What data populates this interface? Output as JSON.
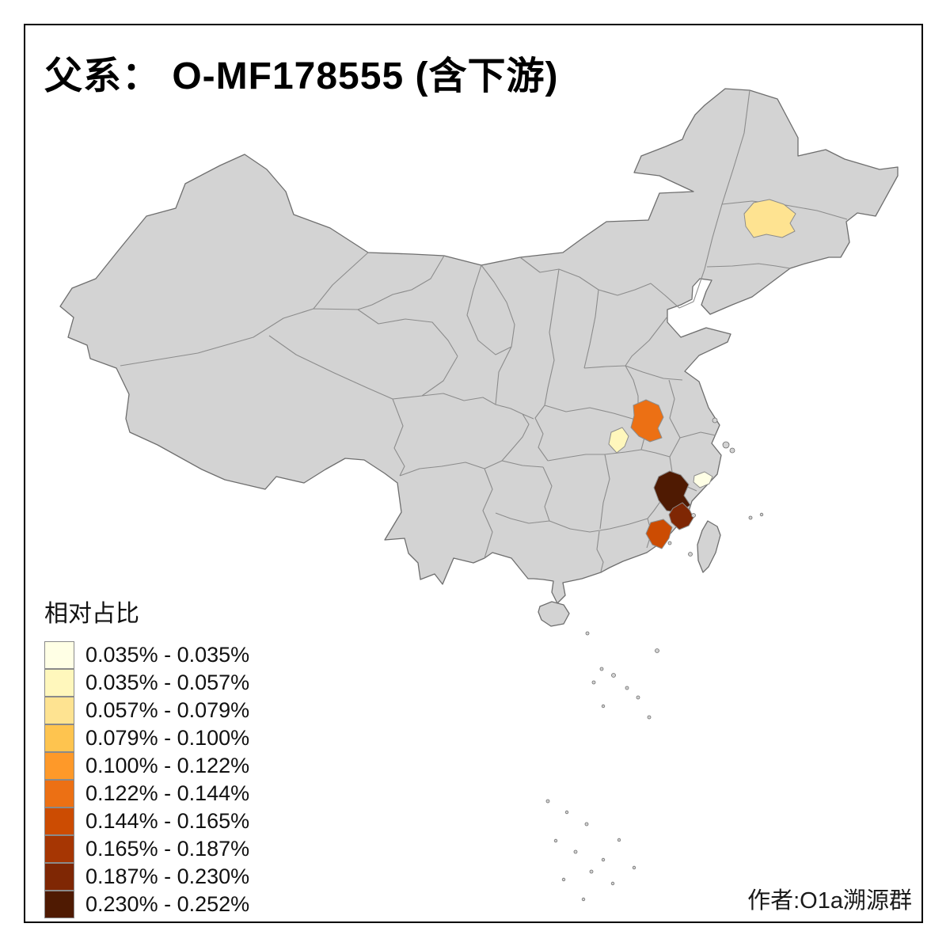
{
  "title": "父系： O-MF178555 (含下游)",
  "legend": {
    "title": "相对占比",
    "items": [
      {
        "color": "#FFFFE5",
        "label": "0.035% - 0.035%"
      },
      {
        "color": "#FFF7BC",
        "label": "0.035% - 0.057%"
      },
      {
        "color": "#FEE391",
        "label": "0.057% - 0.079%"
      },
      {
        "color": "#FEC44F",
        "label": "0.079% - 0.100%"
      },
      {
        "color": "#FE9929",
        "label": "0.100% - 0.122%"
      },
      {
        "color": "#EC7014",
        "label": "0.122% - 0.144%"
      },
      {
        "color": "#CC4C02",
        "label": "0.144% - 0.165%"
      },
      {
        "color": "#A63603",
        "label": "0.165% - 0.187%"
      },
      {
        "color": "#7F2704",
        "label": "0.187% - 0.230%"
      },
      {
        "color": "#4F1A02",
        "label": "0.230% - 0.252%"
      }
    ]
  },
  "attribution": "作者:O1a溯源群",
  "map": {
    "land_color": "#D3D3D3",
    "border_color": "#8C8C8C",
    "outline_color": "#6E6E6E",
    "background": "#FFFFFF",
    "regions": {
      "jilin-central": {
        "color": "#FEE391"
      },
      "hubei-east": {
        "color": "#EC7014"
      },
      "hubei-west": {
        "color": "#FFF7BC"
      },
      "zhejiang-southwest": {
        "color": "#4F1A02"
      },
      "zhejiang-coast": {
        "color": "#FFFFE5"
      },
      "fujian-northeast": {
        "color": "#7F2704"
      },
      "fujian-south-coast": {
        "color": "#CC4C02"
      }
    }
  }
}
